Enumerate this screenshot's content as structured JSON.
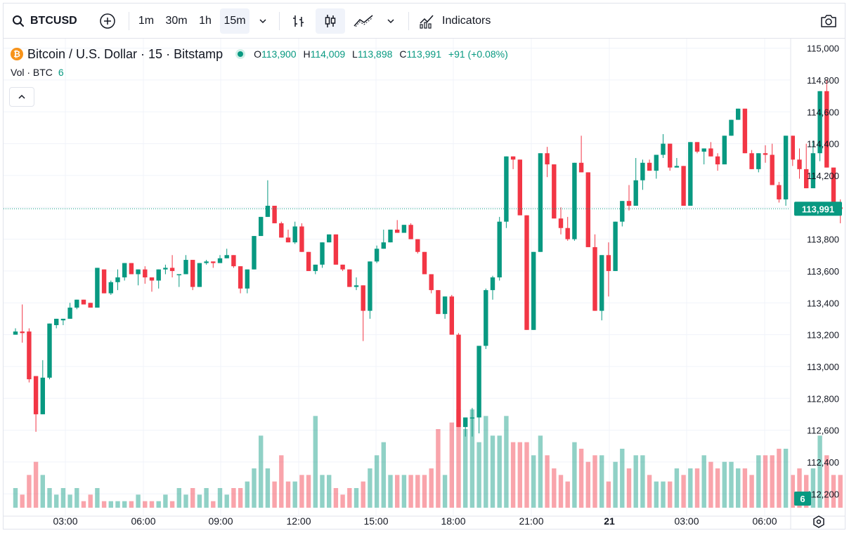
{
  "toolbar": {
    "symbol": "BTCUSD",
    "intervals": [
      "1m",
      "30m",
      "1h",
      "15m"
    ],
    "active_interval": "15m",
    "indicators_label": "Indicators"
  },
  "legend": {
    "title": "Bitcoin / U.S. Dollar · 15 · Bitstamp",
    "coin_glyph": "₿",
    "open_label": "O",
    "open": "113,900",
    "high_label": "H",
    "high": "114,009",
    "low_label": "L",
    "low": "113,898",
    "close_label": "C",
    "close": "113,991",
    "change": "+91 (+0.08%)",
    "up_color": "#089981",
    "down_color": "#f23645"
  },
  "volume_legend": {
    "label": "Vol · BTC",
    "value": "6"
  },
  "chart_data": {
    "type": "candlestick",
    "symbol": "BTCUSD",
    "interval": "15",
    "y_ticks": [
      112200,
      112400,
      112600,
      112800,
      113000,
      113200,
      113400,
      113600,
      113800,
      114000,
      114200,
      114400,
      114600,
      114800,
      115000
    ],
    "ylim": [
      112060,
      115060
    ],
    "x_ticks": [
      "03:00",
      "06:00",
      "09:00",
      "12:00",
      "15:00",
      "18:00",
      "21:00",
      "21",
      "03:00",
      "06:00"
    ],
    "last_price": "113,991",
    "last_volume": "6",
    "candles": [
      [
        113200,
        113240,
        113200,
        113220,
        3
      ],
      [
        113220,
        113390,
        113150,
        113210,
        2
      ],
      [
        113220,
        113240,
        112900,
        112920,
        5
      ],
      [
        112940,
        112900,
        112590,
        112700,
        7
      ],
      [
        112700,
        113040,
        112700,
        112930,
        5
      ],
      [
        112930,
        113100,
        112920,
        113270,
        3
      ],
      [
        113260,
        113280,
        113240,
        113300,
        2
      ],
      [
        113290,
        113300,
        113260,
        113300,
        3
      ],
      [
        113300,
        113400,
        113340,
        113370,
        2
      ],
      [
        113370,
        113410,
        113360,
        113420,
        3
      ],
      [
        113420,
        113380,
        113400,
        113390,
        1
      ],
      [
        113400,
        113350,
        113380,
        113370,
        2
      ],
      [
        113370,
        113420,
        113370,
        113620,
        3
      ],
      [
        113610,
        113610,
        113460,
        113460,
        1
      ],
      [
        113460,
        113540,
        113450,
        113530,
        1
      ],
      [
        113530,
        113610,
        113480,
        113560,
        1
      ],
      [
        113560,
        113590,
        113540,
        113650,
        1
      ],
      [
        113650,
        113580,
        113590,
        113580,
        1
      ],
      [
        113580,
        113610,
        113510,
        113610,
        2
      ],
      [
        113610,
        113630,
        113520,
        113560,
        1
      ],
      [
        113560,
        113540,
        113470,
        113540,
        1
      ],
      [
        113540,
        113590,
        113490,
        113610,
        1
      ],
      [
        113610,
        113640,
        113580,
        113620,
        2
      ],
      [
        113620,
        113700,
        113560,
        113600,
        1
      ],
      [
        113580,
        113580,
        113500,
        113580,
        3
      ],
      [
        113580,
        113700,
        113620,
        113670,
        2
      ],
      [
        113670,
        113670,
        113480,
        113500,
        3
      ],
      [
        113500,
        113650,
        113500,
        113650,
        2
      ],
      [
        113650,
        113670,
        113640,
        113660,
        3
      ],
      [
        113660,
        113650,
        113620,
        113650,
        1
      ],
      [
        113650,
        113700,
        113680,
        113680,
        3
      ],
      [
        113680,
        113740,
        113690,
        113700,
        2
      ],
      [
        113700,
        113670,
        113620,
        113630,
        3
      ],
      [
        113630,
        113610,
        113460,
        113490,
        3
      ],
      [
        113490,
        113420,
        113460,
        113610,
        4
      ],
      [
        113610,
        113590,
        113800,
        113820,
        6
      ],
      [
        113820,
        113880,
        113820,
        113940,
        11
      ],
      [
        113940,
        114170,
        113960,
        114010,
        6
      ],
      [
        114010,
        113980,
        113990,
        113900,
        4
      ],
      [
        113900,
        113910,
        113840,
        113810,
        8
      ],
      [
        113810,
        113860,
        113800,
        113780,
        4
      ],
      [
        113780,
        113910,
        113770,
        113880,
        4
      ],
      [
        113880,
        113900,
        113760,
        113720,
        5
      ],
      [
        113720,
        113640,
        113680,
        113600,
        5
      ],
      [
        113600,
        113640,
        113580,
        113640,
        14
      ],
      [
        113640,
        113700,
        113620,
        113780,
        5
      ],
      [
        113780,
        113780,
        113790,
        113830,
        5
      ],
      [
        113830,
        113810,
        113700,
        113640,
        3
      ],
      [
        113640,
        113630,
        113600,
        113610,
        2
      ],
      [
        113610,
        113610,
        113580,
        113500,
        3
      ],
      [
        113500,
        113560,
        113480,
        113510,
        3
      ],
      [
        113510,
        113070,
        113160,
        113350,
        4
      ],
      [
        113350,
        113360,
        113300,
        113660,
        6
      ],
      [
        113660,
        113760,
        113650,
        113740,
        8
      ],
      [
        113740,
        113860,
        113870,
        113780,
        10
      ],
      [
        113780,
        113800,
        113810,
        113860,
        5
      ],
      [
        113860,
        113920,
        113840,
        113840,
        5
      ],
      [
        113840,
        113870,
        113850,
        113890,
        5
      ],
      [
        113890,
        113900,
        113840,
        113800,
        5
      ],
      [
        113800,
        113800,
        113710,
        113720,
        5
      ],
      [
        113720,
        113710,
        113600,
        113580,
        5
      ],
      [
        113580,
        113530,
        113460,
        113480,
        6
      ],
      [
        113480,
        113480,
        113330,
        113330,
        12
      ],
      [
        113330,
        113440,
        113300,
        113440,
        5
      ],
      [
        113440,
        113450,
        113300,
        113200,
        13
      ],
      [
        113200,
        113210,
        112740,
        112620,
        15
      ],
      [
        112620,
        112660,
        112560,
        112680,
        12
      ],
      [
        112680,
        112740,
        112560,
        112680,
        15
      ],
      [
        112680,
        113130,
        112580,
        113130,
        10
      ],
      [
        113130,
        113490,
        113110,
        113480,
        14
      ],
      [
        113480,
        113570,
        113420,
        113560,
        11
      ],
      [
        113560,
        113940,
        113540,
        113910,
        11
      ],
      [
        113910,
        114020,
        113870,
        114320,
        14
      ],
      [
        114320,
        114300,
        114240,
        114300,
        10
      ],
      [
        114300,
        114240,
        113960,
        113950,
        10
      ],
      [
        113950,
        113810,
        113240,
        113230,
        10
      ],
      [
        113230,
        113430,
        113270,
        113720,
        8
      ],
      [
        113720,
        114290,
        113740,
        114340,
        11
      ],
      [
        114340,
        114380,
        114190,
        114270,
        8
      ],
      [
        114270,
        114010,
        113960,
        113930,
        6
      ],
      [
        113930,
        114000,
        113830,
        113870,
        5
      ],
      [
        113870,
        113940,
        113790,
        113800,
        4
      ],
      [
        113800,
        114170,
        113790,
        114280,
        10
      ],
      [
        114280,
        114450,
        114260,
        114220,
        9
      ],
      [
        114220,
        114220,
        113820,
        113750,
        7
      ],
      [
        113750,
        113830,
        113500,
        113350,
        8
      ],
      [
        113350,
        113330,
        113290,
        113700,
        8
      ],
      [
        113700,
        113780,
        113440,
        113600,
        4
      ],
      [
        113600,
        113830,
        113760,
        113910,
        7
      ],
      [
        113910,
        114030,
        113880,
        114040,
        9
      ],
      [
        114040,
        114140,
        113980,
        114010,
        6
      ],
      [
        114010,
        114310,
        114010,
        114170,
        8
      ],
      [
        114170,
        114300,
        114110,
        114280,
        8
      ],
      [
        114280,
        114300,
        114230,
        114230,
        5
      ],
      [
        114230,
        114240,
        114180,
        114330,
        4
      ],
      [
        114330,
        114460,
        114310,
        114400,
        4
      ],
      [
        114400,
        114390,
        114230,
        114250,
        4
      ],
      [
        114250,
        114310,
        114250,
        114260,
        6
      ],
      [
        114260,
        114040,
        114010,
        114010,
        5
      ],
      [
        114010,
        114230,
        114010,
        114410,
        6
      ],
      [
        114410,
        114370,
        114340,
        114350,
        6
      ],
      [
        114350,
        114370,
        114270,
        114370,
        8
      ],
      [
        114370,
        114410,
        114340,
        114320,
        7
      ],
      [
        114320,
        114340,
        114230,
        114270,
        6
      ],
      [
        114270,
        114450,
        114280,
        114450,
        7
      ],
      [
        114450,
        114530,
        114460,
        114550,
        7
      ],
      [
        114550,
        114620,
        114550,
        114620,
        6
      ],
      [
        114620,
        114570,
        114450,
        114340,
        6
      ],
      [
        114340,
        114360,
        114240,
        114240,
        5
      ],
      [
        114240,
        114330,
        114220,
        114340,
        8
      ],
      [
        114340,
        114390,
        114280,
        114330,
        8
      ],
      [
        114330,
        114400,
        114200,
        114140,
        8
      ],
      [
        114140,
        114160,
        114030,
        114050,
        9
      ],
      [
        114050,
        114090,
        114010,
        114450,
        9
      ],
      [
        114450,
        114310,
        114260,
        114300,
        5
      ],
      [
        114300,
        114370,
        114180,
        114240,
        6
      ],
      [
        114240,
        114400,
        114190,
        114120,
        5
      ],
      [
        114120,
        114420,
        114170,
        114340,
        6
      ],
      [
        114340,
        114410,
        114290,
        114730,
        11
      ],
      [
        114730,
        114800,
        114600,
        114250,
        8
      ],
      [
        114250,
        114180,
        113950,
        114000,
        5
      ],
      [
        114000,
        114050,
        113900,
        113990,
        5
      ],
      [
        113990,
        114520,
        113900,
        114020,
        5
      ],
      [
        114020,
        114430,
        114030,
        114330,
        5
      ],
      [
        114330,
        114250,
        114180,
        114180,
        5
      ],
      [
        114180,
        114150,
        114000,
        113920,
        6
      ],
      [
        113920,
        113920,
        113910,
        113880,
        2
      ],
      [
        113900,
        114009,
        113898,
        113991,
        6
      ]
    ]
  }
}
